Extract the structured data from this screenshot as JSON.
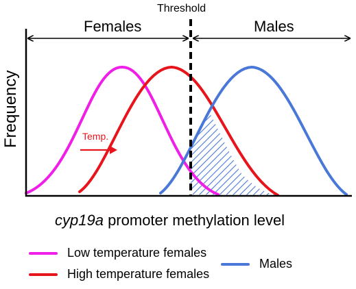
{
  "labels": {
    "threshold": "Threshold",
    "females": "Females",
    "males": "Males",
    "y_axis": "Frequency",
    "x_axis_gene": "cyp19a",
    "x_axis_rest": " promoter methylation level",
    "temp": "Temp."
  },
  "legend": {
    "low_temp_females": "Low temperature females",
    "high_temp_females": "High temperature females",
    "males": "Males"
  },
  "colors": {
    "low_temp_females": "#f01fe8",
    "high_temp_females": "#e8141b",
    "males": "#4a78d8",
    "hatch": "#4a78d8",
    "axis": "#000000"
  }
}
